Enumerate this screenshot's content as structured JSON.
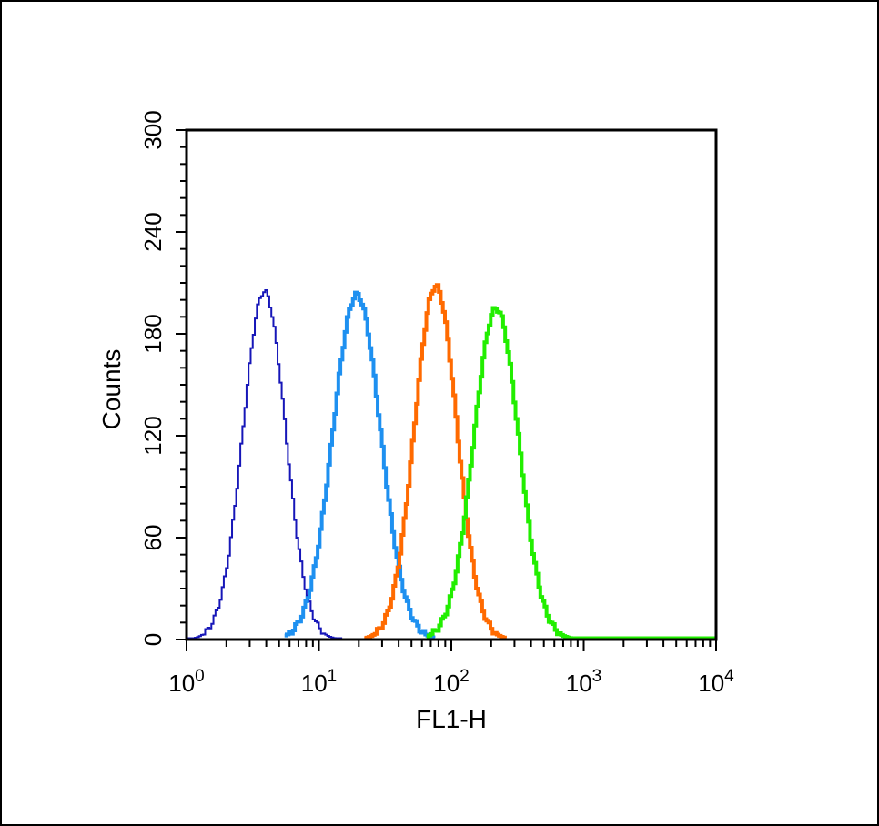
{
  "chart_data": {
    "type": "line",
    "title": "",
    "xlabel": "FL1-H",
    "ylabel": "Counts",
    "xscale": "log",
    "xlim": [
      1,
      10000
    ],
    "ylim": [
      0,
      300
    ],
    "x_ticks": [
      {
        "value": 1,
        "base": "10",
        "exp": "0"
      },
      {
        "value": 10,
        "base": "10",
        "exp": "1"
      },
      {
        "value": 100,
        "base": "10",
        "exp": "2"
      },
      {
        "value": 1000,
        "base": "10",
        "exp": "3"
      },
      {
        "value": 10000,
        "base": "10",
        "exp": "4"
      }
    ],
    "y_ticks": [
      "0",
      "60",
      "120",
      "180",
      "240",
      "300"
    ],
    "grid": false,
    "legend": "none",
    "series": [
      {
        "color": "#1616b8",
        "stroke_weight": "thin",
        "peak_x": 3.8,
        "peak_y": 205,
        "log_sigma": 0.16,
        "x_range": [
          1,
          15
        ]
      },
      {
        "color": "#1e90f0",
        "stroke_weight": "thick",
        "peak_x": 19,
        "peak_y": 203,
        "log_sigma": 0.18,
        "x_range": [
          5.5,
          75
        ]
      },
      {
        "color": "#ff6a00",
        "stroke_weight": "thick",
        "peak_x": 75,
        "peak_y": 208,
        "log_sigma": 0.16,
        "x_range": [
          22,
          260
        ]
      },
      {
        "color": "#22ee00",
        "stroke_weight": "thick",
        "peak_x": 215,
        "peak_y": 195,
        "log_sigma": 0.17,
        "x_range": [
          65,
          10000
        ]
      }
    ]
  }
}
